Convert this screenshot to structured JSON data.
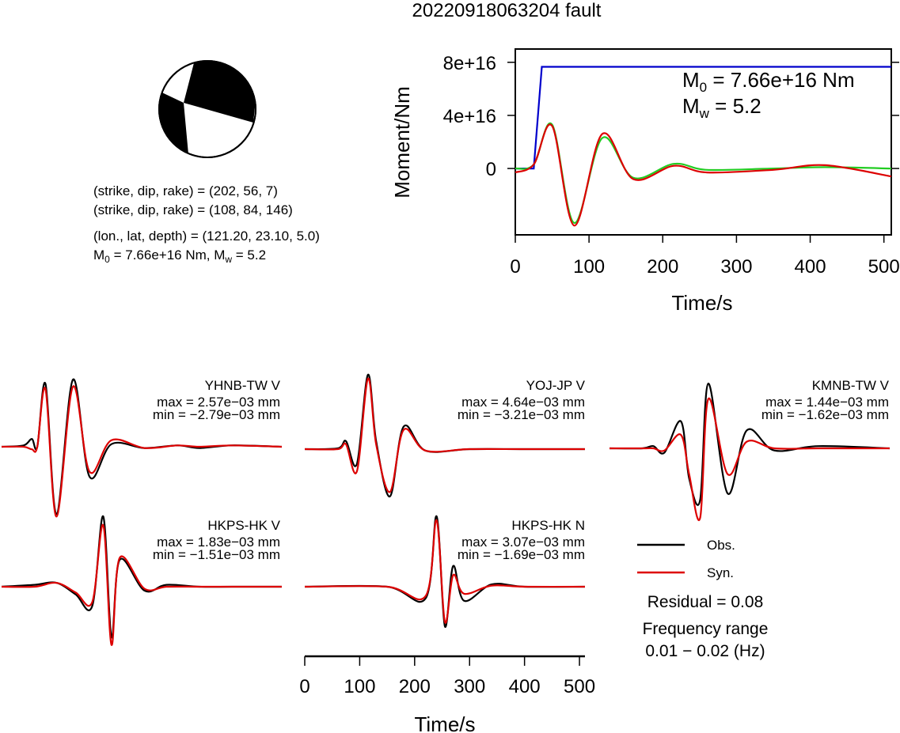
{
  "title": "20220918063204 fault",
  "colors": {
    "observed": "#000000",
    "synthetic": "#dd0000",
    "moment": "#0000cc",
    "stf_green": "#22cc22",
    "stf_red": "#dd0000"
  },
  "source_info": {
    "plane1": "(strike, dip, rake) = (202, 56, 7)",
    "plane2": "(strike, dip, rake) = (108, 84, 146)",
    "location": "(lon., lat, depth) = (121.20, 23.10, 5.0)",
    "m0_prefix": "M",
    "m0_sub": "0",
    "m0_rest": " = 7.66e+16 Nm, M",
    "mw_sub": "w",
    "mw_rest": " = 5.2"
  },
  "moment_panel": {
    "ylabel": "Moment/Nm",
    "xlabel": "Time/s",
    "xticks": [
      "0",
      "100",
      "200",
      "300",
      "400",
      "500"
    ],
    "yticks": [
      "0",
      "4e+16",
      "8e+16"
    ],
    "m0_label_prefix": "M",
    "m0_label_sub": "0",
    "m0_label_rest": " = 7.66e+16 Nm",
    "mw_label_prefix": "M",
    "mw_label_sub": "w",
    "mw_label_rest": " = 5.2"
  },
  "legend": {
    "obs": "Obs.",
    "syn": "Syn.",
    "residual": "Residual = 0.08",
    "freq_title": "Frequency range",
    "freq_value": "0.01 − 0.02 (Hz)"
  },
  "waveform_axis": {
    "xlabel": "Time/s",
    "xticks": [
      "0",
      "100",
      "200",
      "300",
      "400",
      "500"
    ]
  },
  "chart_data": [
    {
      "type": "line",
      "title": "",
      "xlabel": "Time/s",
      "ylabel": "Moment/Nm",
      "xlim": [
        0,
        510
      ],
      "ylim": [
        -5e+16,
        9e+16
      ],
      "series": [
        {
          "name": "",
          "color": "#0000cc",
          "x": [
            0,
            25,
            36,
            510
          ],
          "y": [
            0,
            0,
            7.66e+16,
            7.66e+16
          ]
        },
        {
          "name": "",
          "color": "#22cc22",
          "x": [
            0,
            25,
            50,
            80,
            118,
            160,
            215,
            260,
            350,
            420,
            510
          ],
          "y": [
            0,
            3000000000000000.0,
            3.3e+16,
            -4.1e+16,
            2.3e+16,
            -7000000000000000.0,
            3500000000000000.0,
            -1000000000000000.0,
            0,
            1000000000000000.0,
            0
          ]
        },
        {
          "name": "",
          "color": "#dd0000",
          "x": [
            0,
            25,
            50,
            80,
            118,
            160,
            215,
            260,
            350,
            420,
            510
          ],
          "y": [
            -3000000000000000.0,
            3000000000000000.0,
            3.2e+16,
            -4.3e+16,
            2.6e+16,
            -8000000000000000.0,
            2000000000000000.0,
            -3000000000000000.0,
            -1000000000000000.0,
            2500000000000000.0,
            -6000000000000000.0
          ]
        }
      ]
    },
    {
      "type": "line",
      "station": "YHNB-TW V",
      "max": "max = 2.57e−03 mm",
      "min": "min = −2.79e−03 mm",
      "xlim": [
        0,
        510
      ],
      "ylim": [
        -2.79,
        2.57
      ],
      "series": [
        {
          "name": "Obs.",
          "x": [
            0,
            40,
            55,
            65,
            80,
            100,
            130,
            160,
            200,
            260,
            320,
            360,
            420,
            510
          ],
          "y": [
            0,
            0.05,
            0.3,
            0,
            2.4,
            -2.7,
            2.57,
            -1.2,
            0.1,
            -0.05,
            0.05,
            -0.05,
            0.05,
            0
          ]
        },
        {
          "name": "Syn.",
          "x": [
            0,
            40,
            55,
            65,
            80,
            100,
            130,
            160,
            200,
            260,
            320,
            360,
            420,
            510
          ],
          "y": [
            0,
            0,
            -0.1,
            0,
            2.2,
            -2.8,
            2.3,
            -1.0,
            0.25,
            -0.05,
            0.05,
            0,
            0.05,
            0
          ]
        }
      ]
    },
    {
      "type": "line",
      "station": "YOJ-JP V",
      "max": "max = 4.64e−03 mm",
      "min": "min = −3.21e−03 mm",
      "xlim": [
        0,
        510
      ],
      "ylim": [
        -3.21,
        4.64
      ],
      "series": [
        {
          "name": "Obs.",
          "x": [
            0,
            60,
            75,
            95,
            115,
            130,
            155,
            180,
            220,
            300,
            400,
            510
          ],
          "y": [
            0,
            0.05,
            0.5,
            -1.0,
            4.64,
            0.5,
            -3.2,
            1.4,
            -0.1,
            0,
            0,
            0
          ]
        },
        {
          "name": "Syn.",
          "x": [
            0,
            60,
            75,
            95,
            115,
            130,
            155,
            180,
            220,
            300,
            400,
            510
          ],
          "y": [
            0,
            0,
            0.3,
            -1.5,
            4.4,
            0.3,
            -2.9,
            1.2,
            -0.1,
            0,
            0,
            0
          ]
        }
      ]
    },
    {
      "type": "line",
      "station": "KMNB-TW V",
      "max": "max = 1.44e−03 mm",
      "min": "min = −1.62e−03 mm",
      "xlim": [
        0,
        510
      ],
      "ylim": [
        -1.62,
        1.44
      ],
      "series": [
        {
          "name": "Obs.",
          "x": [
            0,
            60,
            80,
            100,
            130,
            145,
            165,
            180,
            215,
            250,
            300,
            380,
            510
          ],
          "y": [
            0,
            0,
            0.05,
            -0.1,
            0.6,
            -0.7,
            -1.2,
            1.44,
            -1.05,
            0.4,
            -0.05,
            0.05,
            0
          ]
        },
        {
          "name": "Syn.",
          "x": [
            0,
            60,
            80,
            100,
            130,
            145,
            165,
            180,
            215,
            250,
            300,
            380,
            510
          ],
          "y": [
            0,
            0,
            0,
            -0.05,
            0.3,
            -0.6,
            -1.62,
            1.1,
            -0.6,
            0.15,
            0,
            0,
            0
          ]
        }
      ]
    },
    {
      "type": "line",
      "station": "HKPS-HK V",
      "max": "max = 1.83e−03 mm",
      "min": "min = −1.51e−03 mm",
      "xlim": [
        0,
        510
      ],
      "ylim": [
        -1.51,
        1.83
      ],
      "series": [
        {
          "name": "Obs.",
          "x": [
            0,
            60,
            100,
            135,
            165,
            185,
            200,
            215,
            260,
            300,
            360,
            420,
            510
          ],
          "y": [
            0,
            0.05,
            0.1,
            -0.2,
            -0.5,
            1.83,
            -1.3,
            0.7,
            -0.1,
            0.05,
            0,
            0,
            0
          ]
        },
        {
          "name": "Syn.",
          "x": [
            0,
            60,
            100,
            135,
            165,
            185,
            200,
            215,
            260,
            300,
            360,
            420,
            510
          ],
          "y": [
            0,
            0,
            0.1,
            -0.15,
            -0.4,
            1.6,
            -1.5,
            0.75,
            -0.05,
            0,
            0,
            0,
            0
          ]
        }
      ]
    },
    {
      "type": "line",
      "station": "HKPS-HK N",
      "max": "max = 3.07e−03 mm",
      "min": "min = −1.69e−03 mm",
      "xlim": [
        0,
        510
      ],
      "ylim": [
        -1.69,
        3.07
      ],
      "series": [
        {
          "name": "Obs.",
          "x": [
            0,
            150,
            220,
            240,
            255,
            270,
            290,
            340,
            400,
            510
          ],
          "y": [
            0,
            0,
            -0.5,
            3.07,
            -1.69,
            0.9,
            -0.6,
            0.1,
            0,
            0
          ]
        },
        {
          "name": "Syn.",
          "x": [
            0,
            150,
            220,
            240,
            255,
            270,
            290,
            340,
            400,
            510
          ],
          "y": [
            0,
            0,
            -0.4,
            2.9,
            -1.5,
            0.5,
            -0.3,
            0.05,
            0,
            0
          ]
        }
      ]
    }
  ]
}
